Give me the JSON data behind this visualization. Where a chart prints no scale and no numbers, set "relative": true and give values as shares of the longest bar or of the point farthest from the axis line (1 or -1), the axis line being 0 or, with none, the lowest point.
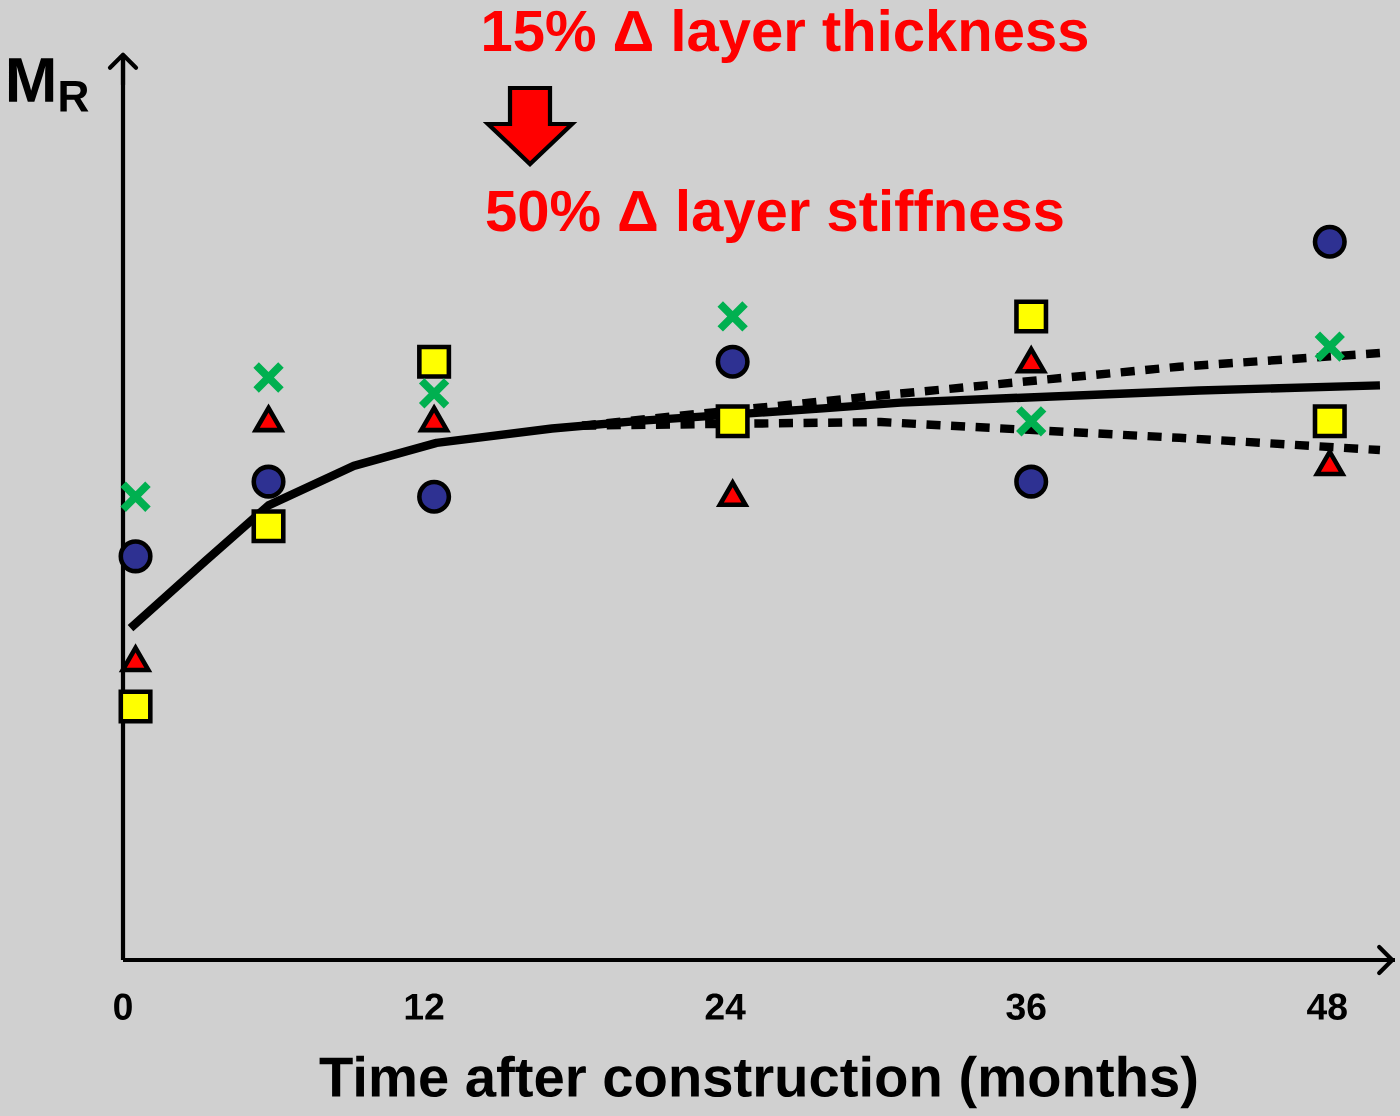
{
  "chart_data": {
    "type": "scatter",
    "relative": true,
    "xlabel": "Time after construction (months)",
    "ylabel": "M$_{R}$",
    "annotations": [
      "15% Δ layer thickness",
      "50% Δ layer stiffness"
    ],
    "x": [
      0.5,
      5.8,
      12.4,
      24.3,
      36.2,
      48.1
    ],
    "xlim": [
      0,
      50.7
    ],
    "xticks": [
      0,
      12,
      24,
      36,
      48
    ],
    "series": [
      {
        "color": "#2e3192",
        "marker": "circle",
        "values": [
          0.562,
          0.666,
          0.645,
          0.833,
          0.666,
          1
        ]
      },
      {
        "color": "#ff0000",
        "marker": "triangle",
        "values": [
          0.414,
          0.748,
          0.748,
          0.644,
          0.83,
          0.687
        ]
      },
      {
        "color": "#ffff00",
        "marker": "square",
        "values": [
          0.353,
          0.604,
          0.833,
          0.75,
          0.896,
          0.75
        ]
      },
      {
        "color": "#00b050",
        "marker": "cross",
        "values": [
          0.645,
          0.811,
          0.789,
          0.896,
          0.75,
          0.854
        ]
      },
      {
        "type": "line",
        "color": "#000000",
        "marker": "none",
        "line_style": "dotted",
        "x": [
          18.3,
          30.2,
          42.1,
          50.1
        ],
        "values": [
          0.744,
          0.786,
          0.826,
          0.845
        ]
      },
      {
        "type": "line",
        "color": "#000000",
        "marker": "none",
        "line_style": "dotted",
        "x": [
          18.3,
          30.2,
          42.1,
          50.1
        ],
        "values": [
          0.744,
          0.749,
          0.727,
          0.71
        ]
      },
      {
        "type": "line",
        "color": "#000000",
        "marker": "none",
        "line_style": "solid",
        "x": [
          0.3,
          3.3,
          5.8,
          9.2,
          12.5,
          17.1,
          20.7,
          27.9,
          31,
          42.9,
          50.1
        ],
        "values": [
          0.462,
          0.556,
          0.633,
          0.688,
          0.72,
          0.74,
          0.751,
          0.768,
          0.776,
          0.793,
          0.8
        ]
      }
    ]
  }
}
